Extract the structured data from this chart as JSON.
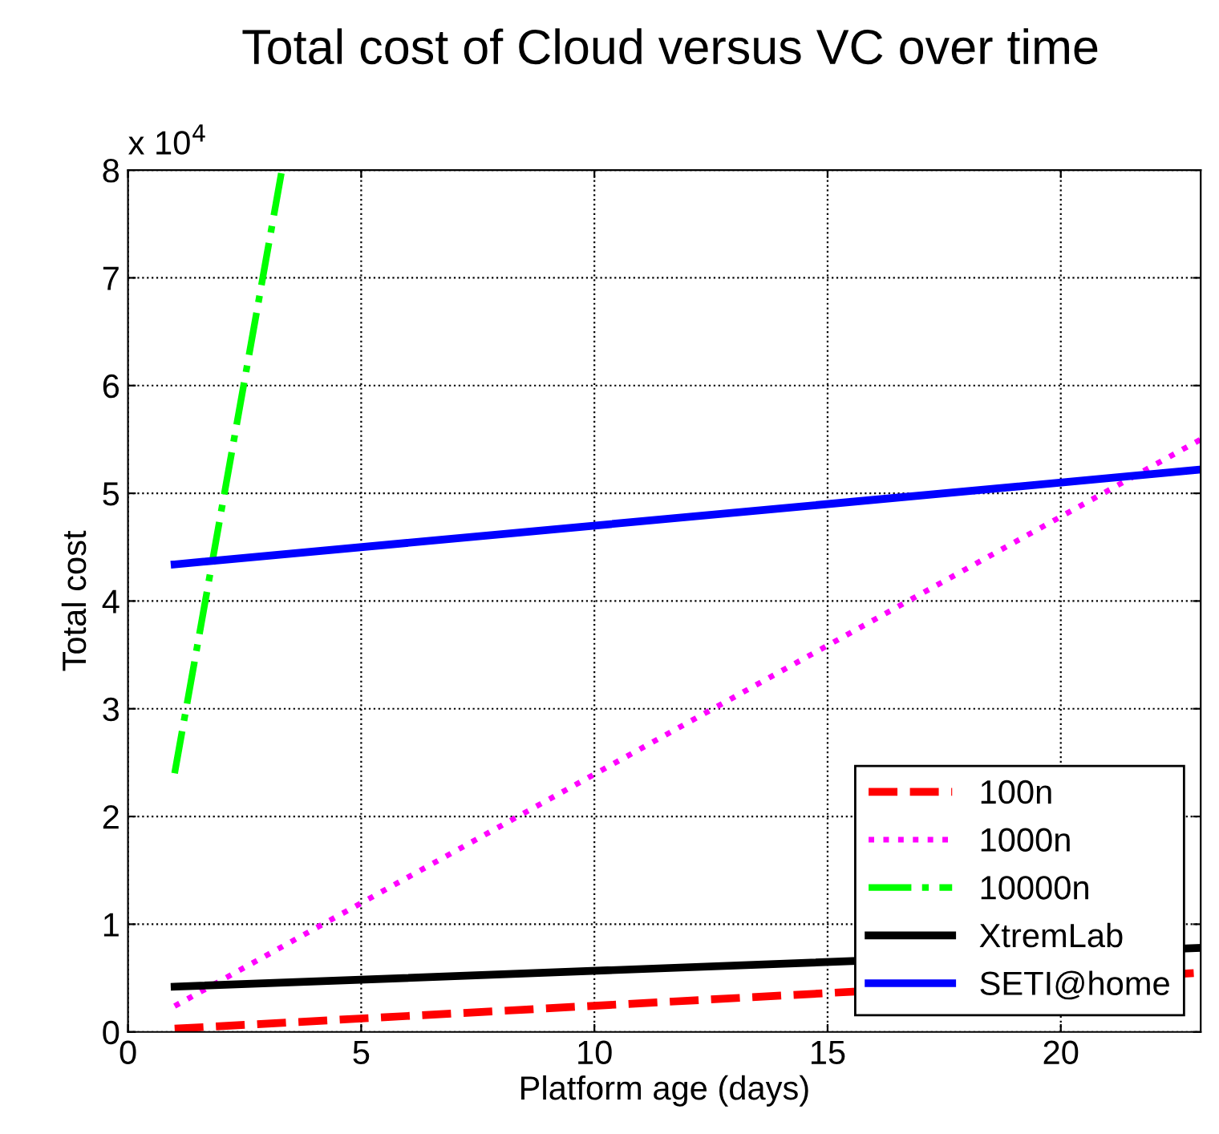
{
  "chart_data": {
    "type": "line",
    "title": "Total cost of Cloud versus VC over time",
    "xlabel": "Platform age (days)",
    "ylabel": "Total cost",
    "annotations": [
      "x 10$^{4}$"
    ],
    "xlim": [
      0,
      23
    ],
    "xticks": [
      0,
      5,
      10,
      15,
      20
    ],
    "ylim": [
      0,
      8
    ],
    "yticks": [
      0,
      1,
      2,
      3,
      4,
      5,
      6,
      7,
      8
    ],
    "grid": true,
    "legend": "lower right",
    "marker": "none",
    "series": [
      {
        "name": "100n",
        "color": "#ff0000",
        "line_style": "dashed",
        "x": [
          1,
          23
        ],
        "values": [
          0.03,
          0.55
        ]
      },
      {
        "name": "1000n",
        "color": "#ff00ff",
        "line_style": "dotted",
        "x": [
          1,
          23
        ],
        "values": [
          0.24,
          5.5
        ]
      },
      {
        "name": "10000n",
        "color": "#00ff00",
        "line_style": "dashdot",
        "x": [
          1,
          3.3
        ],
        "values": [
          2.4,
          8
        ]
      },
      {
        "name": "XtremLab",
        "color": "#000000",
        "line_style": "solid",
        "x": [
          1,
          23
        ],
        "values": [
          0.42,
          0.78
        ]
      },
      {
        "name": "SETI@home",
        "color": "#0000ff",
        "line_style": "solid",
        "x": [
          1,
          23
        ],
        "values": [
          4.34,
          5.22
        ]
      }
    ]
  }
}
